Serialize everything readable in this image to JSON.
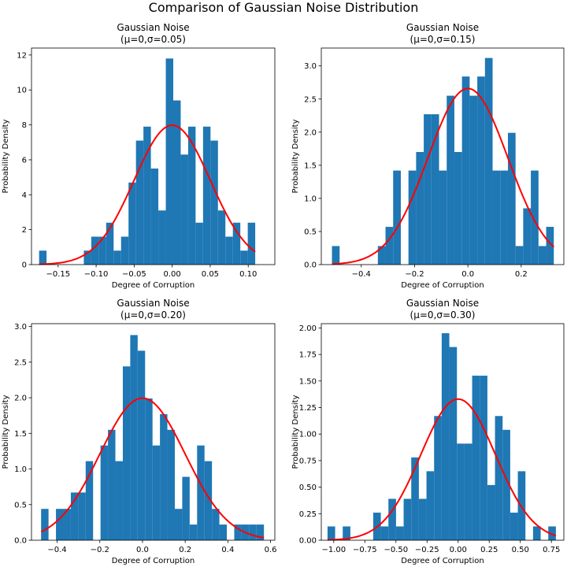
{
  "figure": {
    "title": "Comparison of Gaussian Noise Distribution"
  },
  "chart_data": [
    {
      "type": "bar",
      "title": "Gaussian Noise\n(μ=0,σ=0.05)",
      "xlabel": "Degree of Corruption",
      "ylabel": "Probability Density",
      "xlim": [
        -0.185,
        0.135
      ],
      "ylim": [
        0,
        12.4
      ],
      "xticks": [
        -0.15,
        -0.1,
        -0.05,
        0.0,
        0.05,
        0.1
      ],
      "xtick_labels": [
        "−0.15",
        "−0.10",
        "−0.05",
        "0.00",
        "0.05",
        "0.10"
      ],
      "yticks": [
        0,
        2,
        4,
        6,
        8,
        10,
        12
      ],
      "ytick_labels": [
        "0",
        "2",
        "4",
        "6",
        "8",
        "10",
        "12"
      ],
      "bin_start": -0.175,
      "bin_width": 0.0098,
      "values": [
        0.8,
        0,
        0,
        0,
        0,
        0,
        0.8,
        1.6,
        1.6,
        2.4,
        0.8,
        1.6,
        4.7,
        7.1,
        7.9,
        5.5,
        3.1,
        11.8,
        9.4,
        6.3,
        7.9,
        2.4,
        7.9,
        7.1,
        3.1,
        1.6,
        2.4,
        0.8,
        2.4
      ],
      "curve": {
        "mu": 0,
        "sigma": 0.05,
        "color": "#ff0000"
      },
      "bar_color": "#1f77b4"
    },
    {
      "type": "bar",
      "title": "Gaussian Noise\n(μ=0,σ=0.15)",
      "xlabel": "Degree of Corruption",
      "ylabel": "Probability Density",
      "xlim": [
        -0.55,
        0.36
      ],
      "ylim": [
        0,
        3.27
      ],
      "xticks": [
        -0.4,
        -0.2,
        0.0,
        0.2
      ],
      "xtick_labels": [
        "−0.4",
        "−0.2",
        "0.0",
        "0.2"
      ],
      "yticks": [
        0,
        0.5,
        1.0,
        1.5,
        2.0,
        2.5,
        3.0
      ],
      "ytick_labels": [
        "0.0",
        "0.5",
        "1.0",
        "1.5",
        "2.0",
        "2.5",
        "3.0"
      ],
      "bin_start": -0.51,
      "bin_width": 0.0287,
      "values": [
        0.28,
        0,
        0,
        0,
        0,
        0,
        0.28,
        0.57,
        1.42,
        0,
        1.42,
        1.7,
        2.27,
        2.27,
        1.42,
        2.55,
        1.7,
        2.84,
        2.55,
        2.84,
        3.12,
        1.42,
        1.42,
        1.99,
        0.28,
        0.85,
        1.42,
        0.28,
        0.57
      ],
      "curve": {
        "mu": 0,
        "sigma": 0.15,
        "color": "#ff0000"
      },
      "bar_color": "#1f77b4"
    },
    {
      "type": "bar",
      "title": "Gaussian Noise\n(μ=0,σ=0.20)",
      "xlabel": "Degree of Corruption",
      "ylabel": "Probability Density",
      "xlim": [
        -0.52,
        0.62
      ],
      "ylim": [
        0,
        3.04
      ],
      "xticks": [
        -0.4,
        -0.2,
        0.0,
        0.2,
        0.4,
        0.6
      ],
      "xtick_labels": [
        "−0.4",
        "−0.2",
        "0.0",
        "0.2",
        "0.4",
        "0.6"
      ],
      "yticks": [
        0,
        0.5,
        1.0,
        1.5,
        2.0,
        2.5,
        3.0
      ],
      "ytick_labels": [
        "0.0",
        "0.5",
        "1.0",
        "1.5",
        "2.0",
        "2.5",
        "3.0"
      ],
      "bin_start": -0.475,
      "bin_width": 0.0348,
      "values": [
        0.44,
        0,
        0.44,
        0.44,
        0.67,
        0.67,
        1.11,
        0,
        1.33,
        1.55,
        1.11,
        2.44,
        2.88,
        2.66,
        1.99,
        1.33,
        1.77,
        1.55,
        0.44,
        0.89,
        0.22,
        1.33,
        1.11,
        0.44,
        0.22,
        0,
        0.22,
        0.22,
        0.22,
        0.22
      ],
      "curve": {
        "mu": 0,
        "sigma": 0.2,
        "color": "#ff0000"
      },
      "bar_color": "#1f77b4"
    },
    {
      "type": "bar",
      "title": "Gaussian Noise\n(μ=0,σ=0.30)",
      "xlabel": "Degree of Corruption",
      "ylabel": "Probability Density",
      "xlim": [
        -1.1,
        0.85
      ],
      "ylim": [
        0,
        2.04
      ],
      "xticks": [
        -1.0,
        -0.75,
        -0.5,
        -0.25,
        0.0,
        0.25,
        0.5,
        0.75
      ],
      "xtick_labels": [
        "−1.00",
        "−0.75",
        "−0.50",
        "−0.25",
        "0.00",
        "0.25",
        "0.50",
        "0.75"
      ],
      "yticks": [
        0,
        0.25,
        0.5,
        0.75,
        1.0,
        1.25,
        1.5,
        1.75,
        2.0
      ],
      "ytick_labels": [
        "0.00",
        "0.25",
        "0.50",
        "0.75",
        "1.00",
        "1.25",
        "1.50",
        "1.75",
        "2.00"
      ],
      "bin_start": -1.05,
      "bin_width": 0.0612,
      "values": [
        0.13,
        0,
        0.13,
        0,
        0,
        0,
        0.26,
        0.13,
        0.39,
        0.13,
        0.39,
        0.78,
        0.39,
        0.65,
        1.17,
        1.95,
        1.82,
        0.91,
        0.91,
        1.55,
        1.55,
        0.52,
        1.17,
        1.04,
        0.26,
        0.65,
        0,
        0.13,
        0,
        0.13
      ],
      "curve": {
        "mu": 0,
        "sigma": 0.3,
        "color": "#ff0000"
      },
      "bar_color": "#1f77b4"
    }
  ]
}
